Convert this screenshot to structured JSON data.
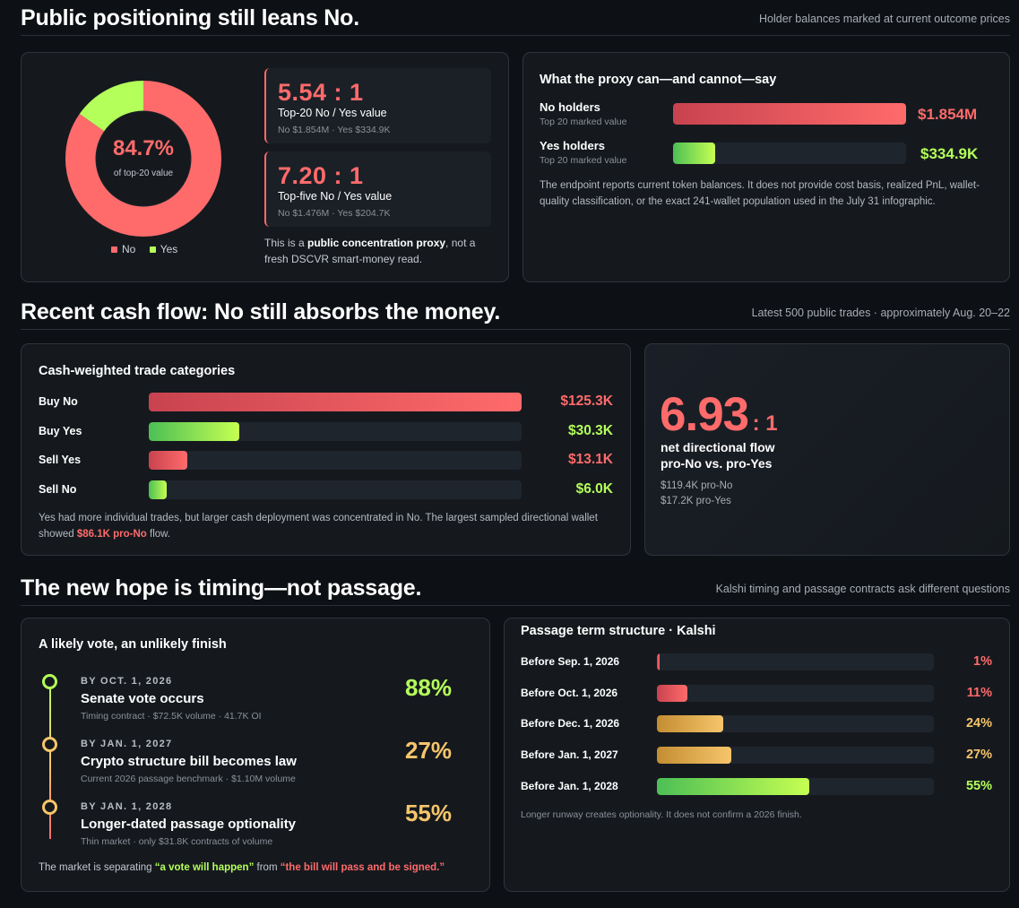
{
  "section1": {
    "title": "Public positioning still leans No.",
    "note": "Holder balances marked at current outcome prices"
  },
  "donut": {
    "center_value": "84.7%",
    "center_label": "of top-20 value",
    "legend_no": "No",
    "legend_yes": "Yes",
    "no_color": "#ff6b6b",
    "yes_color": "#b4ff5a"
  },
  "ratios": [
    {
      "value": "5.54 : 1",
      "label": "Top-20 No / Yes value",
      "sub": "No $1.854M · Yes $334.9K"
    },
    {
      "value": "7.20 : 1",
      "label": "Top-five No / Yes value",
      "sub": "No $1.476M · Yes $204.7K"
    }
  ],
  "proxy_note": {
    "pre": "This is a ",
    "bold": "public concentration proxy",
    "post": ", not a fresh DSCVR smart-money read."
  },
  "proxy_card": {
    "title": "What the proxy can—and cannot—say",
    "rows": [
      {
        "label": "No holders",
        "sub": "Top 20 marked value",
        "value": "$1.854M"
      },
      {
        "label": "Yes holders",
        "sub": "Top 20 marked value",
        "value": "$334.9K"
      }
    ],
    "note": "The endpoint reports current token balances. It does not provide cost basis, realized PnL, wallet-quality classification, or the exact 241-wallet population used in the July 31 infographic."
  },
  "section2": {
    "title": "Recent cash flow: No still absorbs the money.",
    "note": "Latest 500 public trades · approximately Aug. 20–22"
  },
  "trade_card": {
    "title": "Cash-weighted trade categories",
    "note_pre": "Yes had more individual trades, but larger cash deployment was concentrated in No. The largest sampled directional wallet showed ",
    "note_highlight": "$86.1K pro-No",
    "note_post": " flow."
  },
  "net_flow": {
    "big": "6.93",
    "suffix": ": 1",
    "label_line1": "net directional flow",
    "label_line2": "pro-No vs. pro-Yes",
    "sub1": "$119.4K pro-No",
    "sub2": "$17.2K pro-Yes"
  },
  "section3": {
    "title": "The new hope is timing—not passage.",
    "note": "Kalshi timing and passage contracts ask different questions"
  },
  "timeline_card": {
    "title": "A likely vote, an unlikely finish",
    "items": [
      {
        "date": "BY OCT. 1, 2026",
        "title": "Senate vote occurs",
        "sub": "Timing contract · $72.5K volume · 41.7K OI",
        "pct": "88%"
      },
      {
        "date": "BY JAN. 1, 2027",
        "title": "Crypto structure bill becomes law",
        "sub": "Current 2026 passage benchmark · $1.10M volume",
        "pct": "27%"
      },
      {
        "date": "BY JAN. 1, 2028",
        "title": "Longer-dated passage optionality",
        "sub": "Thin market · only $31.8K contracts of volume",
        "pct": "55%"
      }
    ],
    "note_pre": "The market is separating ",
    "note_green": "“a vote will happen”",
    "note_mid": " from ",
    "note_red": "“the bill will pass and be signed.”"
  },
  "passage_card": {
    "title": "Passage term structure · Kalshi",
    "note": "Longer runway creates optionality. It does not confirm a 2026 finish."
  },
  "chart_data": [
    {
      "type": "pie",
      "categories": [
        "No",
        "Yes"
      ],
      "values": [
        84.7,
        15.3
      ]
    },
    {
      "type": "bar",
      "orientation": "horizontal",
      "title": "What the proxy can—and cannot—say",
      "categories": [
        "No holders",
        "Yes holders"
      ],
      "values": [
        1854000,
        334900
      ],
      "labels": [
        "$1.854M",
        "$334.9K"
      ],
      "colors": [
        "red",
        "green"
      ]
    },
    {
      "type": "bar",
      "orientation": "horizontal",
      "title": "Cash-weighted trade categories",
      "categories": [
        "Buy No",
        "Buy Yes",
        "Sell Yes",
        "Sell No"
      ],
      "values": [
        125.3,
        30.3,
        13.1,
        6.0
      ],
      "labels": [
        "$125.3K",
        "$30.3K",
        "$13.1K",
        "$6.0K"
      ],
      "colors": [
        "red",
        "green",
        "red",
        "green"
      ]
    },
    {
      "type": "bar",
      "orientation": "horizontal",
      "title": "Passage term structure · Kalshi",
      "categories": [
        "Before Sep. 1, 2026",
        "Before Oct. 1, 2026",
        "Before Dec. 1, 2026",
        "Before Jan. 1, 2027",
        "Before Jan. 1, 2028"
      ],
      "values": [
        1,
        11,
        24,
        27,
        55
      ],
      "labels": [
        "1%",
        "11%",
        "24%",
        "27%",
        "55%"
      ],
      "colors": [
        "red",
        "red",
        "gold",
        "gold",
        "green"
      ],
      "xlim": [
        0,
        100
      ]
    }
  ]
}
